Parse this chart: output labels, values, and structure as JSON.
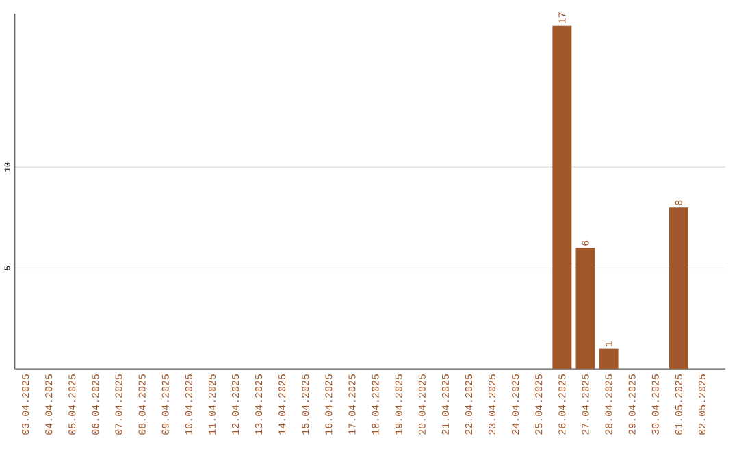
{
  "chart_data": {
    "type": "bar",
    "categories": [
      "03.04.2025",
      "04.04.2025",
      "05.04.2025",
      "06.04.2025",
      "07.04.2025",
      "08.04.2025",
      "09.04.2025",
      "10.04.2025",
      "11.04.2025",
      "12.04.2025",
      "13.04.2025",
      "14.04.2025",
      "15.04.2025",
      "16.04.2025",
      "17.04.2025",
      "18.04.2025",
      "19.04.2025",
      "20.04.2025",
      "21.04.2025",
      "22.04.2025",
      "23.04.2025",
      "24.04.2025",
      "25.04.2025",
      "26.04.2025",
      "27.04.2025",
      "28.04.2025",
      "29.04.2025",
      "30.04.2025",
      "01.05.2025",
      "02.05.2025"
    ],
    "values": [
      0,
      0,
      0,
      0,
      0,
      0,
      0,
      0,
      0,
      0,
      0,
      0,
      0,
      0,
      0,
      0,
      0,
      0,
      0,
      0,
      0,
      0,
      0,
      17,
      6,
      1,
      0,
      0,
      8,
      0
    ],
    "value_labels": [
      null,
      null,
      null,
      null,
      null,
      null,
      null,
      null,
      null,
      null,
      null,
      null,
      null,
      null,
      null,
      null,
      null,
      null,
      null,
      null,
      null,
      null,
      null,
      "17",
      "6",
      "1",
      null,
      null,
      "8",
      null
    ],
    "color": "#a0572a",
    "ylim": [
      0,
      17.6
    ],
    "yticks": [
      5,
      10
    ],
    "grid": "y"
  }
}
